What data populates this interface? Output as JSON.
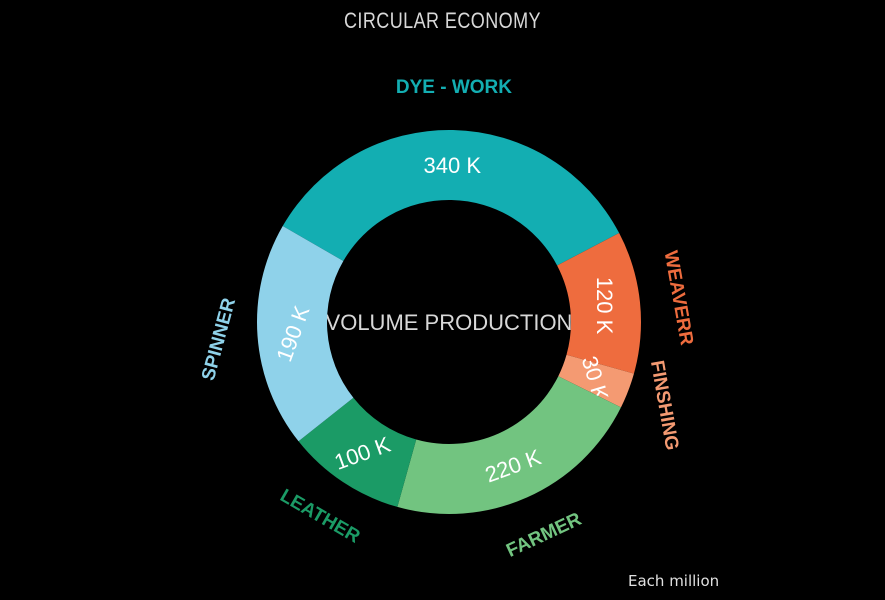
{
  "chart_data": {
    "type": "pie",
    "title": "CIRCULAR ECONOMY",
    "center_label": "VOLUME PRODUCTION",
    "unit_note": "Each million",
    "segments": [
      {
        "name": "DYE - WORK",
        "value": 340,
        "label": "340 K",
        "color": "#13aeb2",
        "label_color": "#13aeb2"
      },
      {
        "name": "WEAVERR",
        "value": 120,
        "label": "120 K",
        "color": "#ee6c3e",
        "label_color": "#ee6c3e"
      },
      {
        "name": "FINSHING",
        "value": 30,
        "label": "30 K",
        "color": "#f49a72",
        "label_color": "#f49a72"
      },
      {
        "name": "FARMER",
        "value": 220,
        "label": "220 K",
        "color": "#72c480",
        "label_color": "#72c480"
      },
      {
        "name": "LEATHER",
        "value": 100,
        "label": "100 K",
        "color": "#1b9b66",
        "label_color": "#1b9b66"
      },
      {
        "name": "SPINNER",
        "value": 190,
        "label": "190 K",
        "color": "#8fd2ea",
        "label_color": "#8fd2ea"
      }
    ]
  }
}
